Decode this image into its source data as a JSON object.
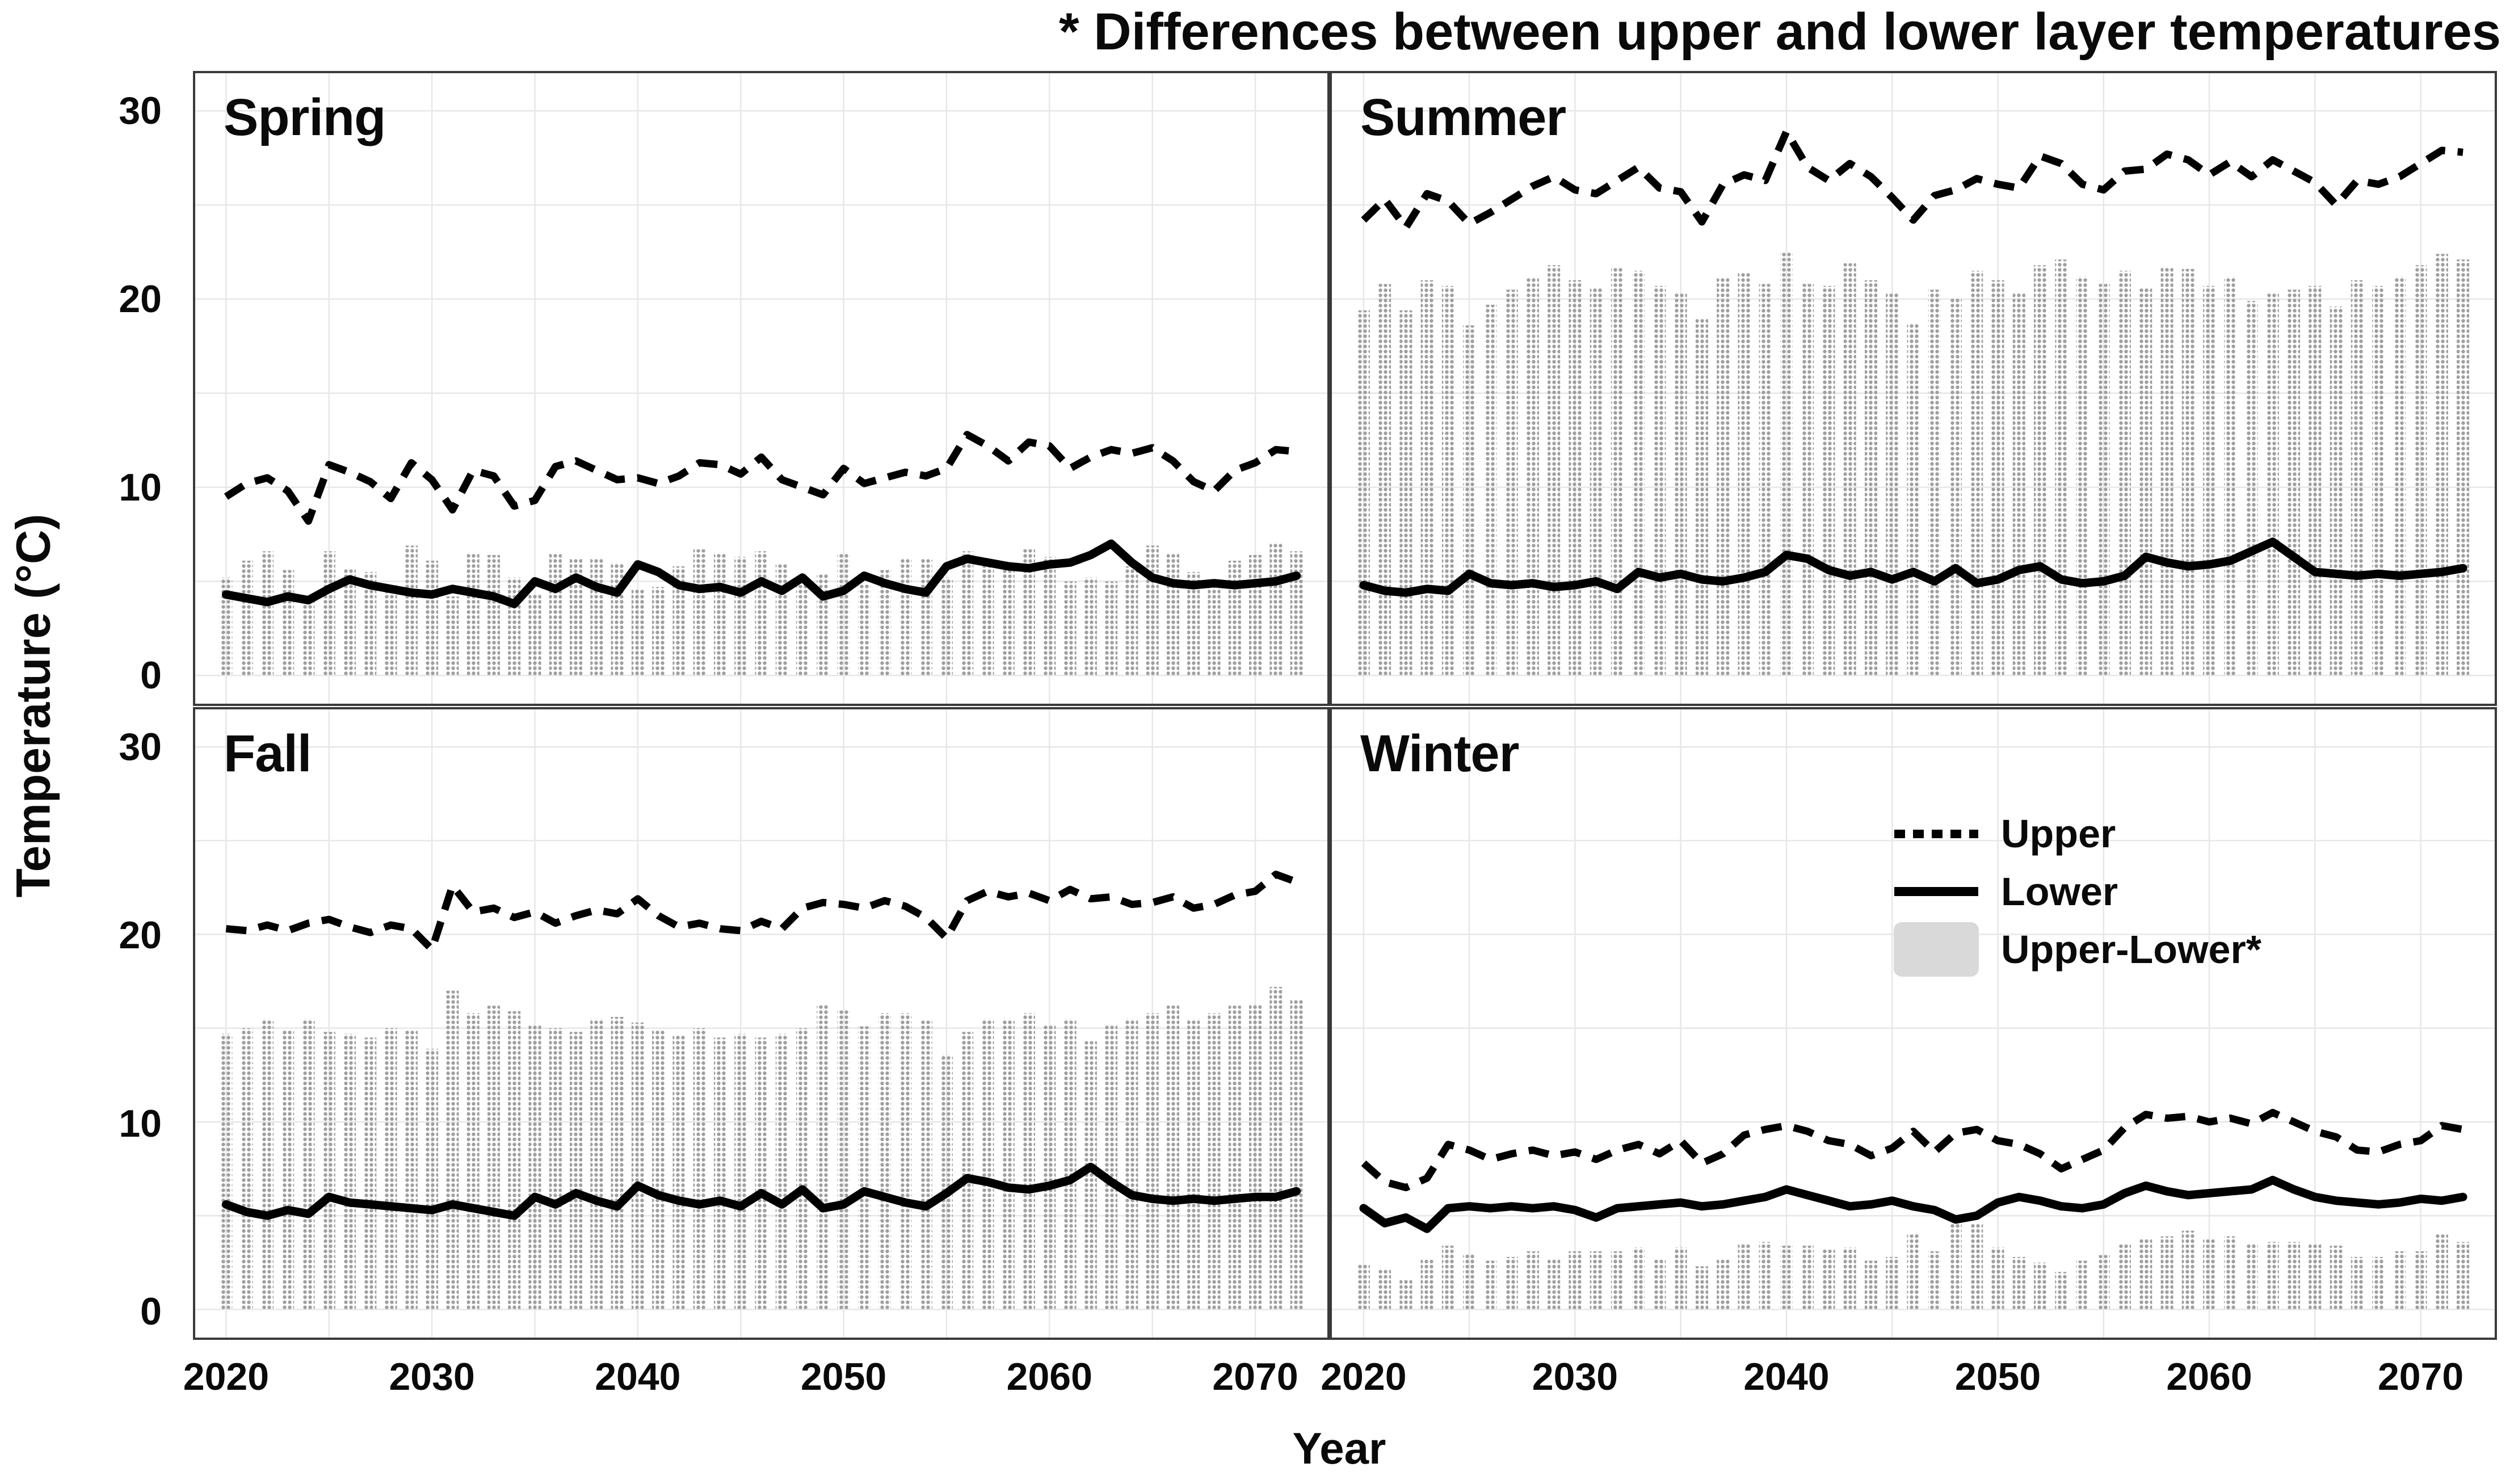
{
  "title": "* Differences between upper and lower layer temperatures",
  "axes": {
    "y_label": "Temperature (°C)",
    "x_label": "Year",
    "y_ticks": [
      "30",
      "20",
      "10",
      "0"
    ],
    "x_ticks": [
      "2020",
      "2030",
      "2040",
      "2050",
      "2060",
      "2070"
    ]
  },
  "legend": {
    "items": [
      {
        "key": "dotted-line",
        "label": "Upper"
      },
      {
        "key": "solid-line",
        "label": "Lower"
      },
      {
        "key": "gray-bar",
        "label": "Upper-Lower*"
      }
    ]
  },
  "colors": {
    "line": "#000000",
    "bar_dot": "#9f9f9f",
    "bar_legend_swatch": "#d9d9d9",
    "grid": "#e7e7e7",
    "panel_border": "#3a3a3a",
    "text": "#0a0a0a"
  },
  "chart_data": {
    "type": "line+bar",
    "title": "* Differences between upper and lower layer temperatures",
    "xlabel": "Year",
    "ylabel": "Temperature (°C)",
    "x_start": 2020,
    "x_end": 2072,
    "x_step": 1,
    "xticks": [
      2020,
      2030,
      2040,
      2050,
      2060,
      2070
    ],
    "yticks": [
      0,
      10,
      20,
      30
    ],
    "ylim": [
      -1.5,
      32
    ],
    "grid": "light gray lines every 5 units (y) and every 5 years (x)",
    "legend_position": "inside Winter panel, upper middle",
    "series_styles": {
      "Upper": "black dashed line",
      "Lower": "black solid line",
      "Upper-Lower*": "light gray dotted-texture bar, height = Upper minus Lower, baseline 0"
    },
    "panels": [
      {
        "title": "Spring",
        "upper": [
          9.5,
          10.2,
          10.5,
          9.8,
          8.2,
          11.2,
          10.8,
          10.3,
          9.4,
          11.3,
          10.4,
          8.8,
          10.9,
          10.6,
          9.0,
          9.3,
          11.1,
          11.4,
          10.9,
          10.4,
          10.5,
          10.2,
          10.6,
          11.3,
          11.2,
          10.7,
          11.6,
          10.4,
          10.0,
          9.6,
          11.0,
          10.2,
          10.5,
          10.8,
          10.6,
          11.0,
          12.8,
          12.2,
          11.4,
          12.4,
          12.2,
          11.0,
          11.6,
          12.0,
          11.8,
          12.1,
          11.4,
          10.3,
          9.8,
          10.9,
          11.3,
          12.0,
          11.9
        ],
        "lower": [
          4.3,
          4.1,
          3.9,
          4.2,
          4.0,
          4.6,
          5.1,
          4.8,
          4.6,
          4.4,
          4.3,
          4.6,
          4.4,
          4.2,
          3.8,
          5.0,
          4.6,
          5.2,
          4.7,
          4.4,
          5.9,
          5.5,
          4.8,
          4.6,
          4.7,
          4.4,
          5.0,
          4.5,
          5.2,
          4.2,
          4.5,
          5.3,
          4.9,
          4.6,
          4.4,
          5.8,
          6.2,
          6.0,
          5.8,
          5.7,
          5.9,
          6.0,
          6.4,
          7.0,
          6.0,
          5.2,
          4.9,
          4.8,
          4.9,
          4.8,
          4.9,
          5.0,
          5.3
        ]
      },
      {
        "title": "Summer",
        "upper": [
          24.2,
          25.3,
          23.8,
          25.6,
          25.2,
          24.0,
          24.6,
          25.3,
          26.0,
          26.5,
          25.8,
          25.6,
          26.3,
          27.0,
          25.9,
          25.7,
          24.1,
          26.1,
          26.6,
          26.3,
          28.9,
          27.0,
          26.3,
          27.2,
          26.5,
          25.4,
          24.2,
          25.5,
          25.8,
          26.4,
          26.1,
          25.9,
          27.6,
          27.2,
          26.1,
          25.8,
          26.8,
          26.9,
          27.7,
          27.4,
          26.6,
          27.3,
          26.5,
          27.4,
          26.8,
          26.2,
          25.0,
          26.3,
          26.1,
          26.5,
          27.2,
          27.9,
          27.8
        ],
        "lower": [
          4.8,
          4.5,
          4.4,
          4.6,
          4.5,
          5.4,
          4.9,
          4.8,
          4.9,
          4.7,
          4.8,
          5.0,
          4.6,
          5.5,
          5.2,
          5.4,
          5.1,
          5.0,
          5.2,
          5.5,
          6.4,
          6.2,
          5.6,
          5.3,
          5.5,
          5.1,
          5.5,
          5.0,
          5.7,
          4.9,
          5.1,
          5.6,
          5.8,
          5.1,
          4.9,
          5.0,
          5.3,
          6.3,
          6.0,
          5.8,
          5.9,
          6.1,
          6.6,
          7.1,
          6.3,
          5.5,
          5.4,
          5.3,
          5.4,
          5.3,
          5.4,
          5.5,
          5.7
        ]
      },
      {
        "title": "Fall",
        "upper": [
          20.3,
          20.2,
          20.5,
          20.2,
          20.6,
          20.8,
          20.4,
          20.1,
          20.5,
          20.3,
          19.2,
          22.6,
          21.2,
          21.4,
          20.9,
          21.2,
          20.6,
          21.0,
          21.3,
          21.1,
          21.9,
          21.0,
          20.4,
          20.6,
          20.3,
          20.2,
          20.7,
          20.3,
          21.4,
          21.7,
          21.6,
          21.4,
          21.8,
          21.5,
          20.9,
          19.8,
          21.8,
          22.3,
          22.0,
          22.2,
          21.8,
          22.4,
          21.9,
          22.0,
          21.6,
          21.7,
          22.0,
          21.4,
          21.6,
          22.1,
          22.3,
          23.2,
          22.8
        ],
        "lower": [
          5.6,
          5.2,
          5.0,
          5.3,
          5.1,
          6.0,
          5.7,
          5.6,
          5.5,
          5.4,
          5.3,
          5.6,
          5.4,
          5.2,
          5.0,
          6.0,
          5.6,
          6.2,
          5.8,
          5.5,
          6.6,
          6.1,
          5.8,
          5.6,
          5.8,
          5.5,
          6.2,
          5.6,
          6.4,
          5.4,
          5.6,
          6.3,
          6.0,
          5.7,
          5.5,
          6.2,
          7.0,
          6.8,
          6.5,
          6.4,
          6.6,
          6.9,
          7.6,
          6.8,
          6.1,
          5.9,
          5.8,
          5.9,
          5.8,
          5.9,
          6.0,
          6.0,
          6.3
        ]
      },
      {
        "title": "Winter",
        "upper": [
          7.8,
          6.8,
          6.5,
          7.0,
          8.8,
          8.5,
          8.0,
          8.3,
          8.5,
          8.2,
          8.4,
          8.0,
          8.5,
          8.8,
          8.3,
          9.0,
          7.8,
          8.3,
          9.3,
          9.6,
          9.8,
          9.5,
          9.0,
          8.8,
          8.2,
          8.6,
          9.5,
          8.4,
          9.4,
          9.6,
          9.0,
          8.8,
          8.3,
          7.5,
          8.0,
          8.5,
          9.7,
          10.4,
          10.2,
          10.3,
          10.0,
          10.2,
          9.9,
          10.5,
          10.0,
          9.5,
          9.2,
          8.5,
          8.4,
          8.8,
          9.0,
          9.8,
          9.6
        ],
        "lower": [
          5.4,
          4.6,
          4.9,
          4.3,
          5.4,
          5.5,
          5.4,
          5.5,
          5.4,
          5.5,
          5.3,
          4.9,
          5.4,
          5.5,
          5.6,
          5.7,
          5.5,
          5.6,
          5.8,
          6.0,
          6.4,
          6.1,
          5.8,
          5.5,
          5.6,
          5.8,
          5.5,
          5.3,
          4.8,
          5.0,
          5.7,
          6.0,
          5.8,
          5.5,
          5.4,
          5.6,
          6.2,
          6.6,
          6.3,
          6.1,
          6.2,
          6.3,
          6.4,
          6.9,
          6.4,
          6.0,
          5.8,
          5.7,
          5.6,
          5.7,
          5.9,
          5.8,
          6.0
        ]
      }
    ]
  }
}
